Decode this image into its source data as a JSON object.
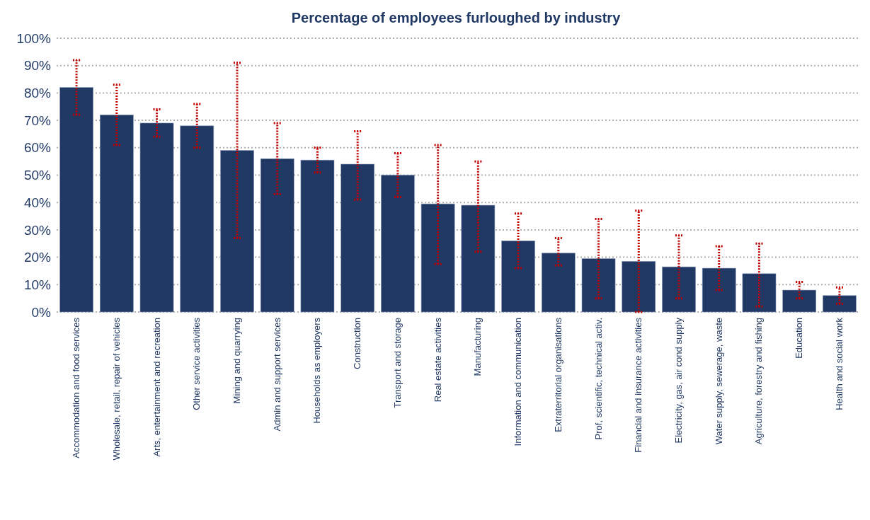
{
  "chart_data": {
    "type": "bar",
    "title": "Percentage of employees furloughed by industry",
    "categories": [
      "Accommodation and food services",
      "Wholesale, retail, repair of vehicles",
      "Arts, entertainment and recreation",
      "Other service activities",
      "Mining and quarrying",
      "Admin and support services",
      "Households as employers",
      "Construction",
      "Transport and storage",
      "Real estate activities",
      "Manufacturing",
      "Information and communication",
      "Extraterritorial organisations",
      "Prof, scientific, technical activ.",
      "Financial and insurance activities",
      "Electricity, gas, air cond supply",
      "Water supply, sewerage, waste",
      "Agriculture, forestry and fishing",
      "Education",
      "Health and social work"
    ],
    "values": [
      82,
      72,
      69,
      68,
      59,
      56,
      55.5,
      54,
      50,
      39.5,
      39,
      26,
      21.5,
      19.5,
      18.5,
      16.5,
      16,
      14,
      8,
      6
    ],
    "errors": [
      [
        72,
        92
      ],
      [
        61,
        83
      ],
      [
        64,
        74
      ],
      [
        60,
        76
      ],
      [
        27,
        91
      ],
      [
        43,
        69
      ],
      [
        51,
        60
      ],
      [
        41,
        66
      ],
      [
        42,
        58
      ],
      [
        17.5,
        61
      ],
      [
        22,
        55
      ],
      [
        16,
        36
      ],
      [
        17,
        27
      ],
      [
        5,
        34
      ],
      [
        0,
        37
      ],
      [
        5,
        28
      ],
      [
        8,
        24
      ],
      [
        2,
        25
      ],
      [
        5,
        11
      ],
      [
        3,
        9
      ]
    ],
    "color": "#203864",
    "ylim": [
      0,
      100
    ],
    "yticks": [
      {
        "value": 0,
        "label": "0%"
      },
      {
        "value": 10,
        "label": "10%"
      },
      {
        "value": 20,
        "label": "20%"
      },
      {
        "value": 30,
        "label": "30%"
      },
      {
        "value": 40,
        "label": "40%"
      },
      {
        "value": 50,
        "label": "50%"
      },
      {
        "value": 60,
        "label": "60%"
      },
      {
        "value": 70,
        "label": "70%"
      },
      {
        "value": 80,
        "label": "80%"
      },
      {
        "value": 90,
        "label": "90%"
      },
      {
        "value": 100,
        "label": "100%"
      }
    ],
    "grid": "y"
  }
}
